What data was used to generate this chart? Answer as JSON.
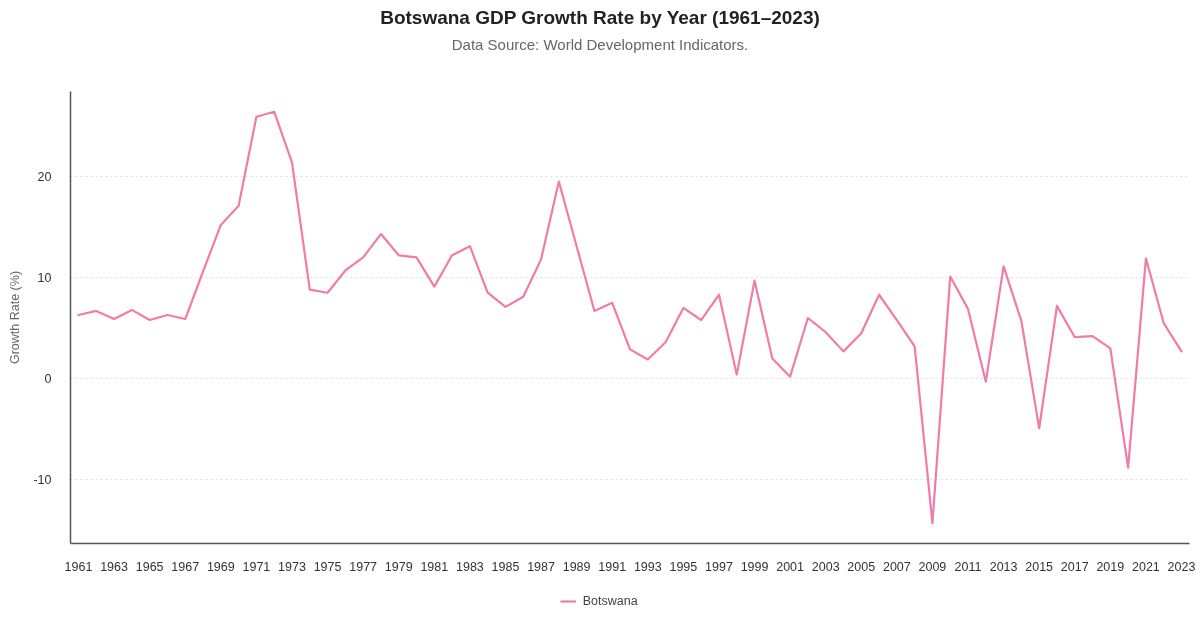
{
  "chart_data": {
    "type": "line",
    "title": "Botswana GDP Growth Rate by Year (1961–2023)",
    "subtitle": "Data Source: World Development Indicators.",
    "ylabel": "Growth Rate (%)",
    "categories": [
      "1961",
      null,
      "1963",
      null,
      "1965",
      null,
      "1967",
      null,
      "1969",
      null,
      "1971",
      null,
      "1973",
      null,
      "1975",
      null,
      "1977",
      null,
      "1979",
      null,
      "1981",
      null,
      "1983",
      null,
      "1985",
      null,
      "1987",
      null,
      "1989",
      null,
      "1991",
      null,
      "1993",
      null,
      "1995",
      null,
      "1997",
      null,
      "1999",
      null,
      "2001",
      null,
      "2003",
      null,
      "2005",
      null,
      "2007",
      null,
      "2009",
      null,
      "2011",
      null,
      "2013",
      null,
      "2015",
      null,
      "2017",
      null,
      "2019",
      null,
      "2021",
      null,
      "2023"
    ],
    "series": [
      {
        "name": "Botswana",
        "color": "#f27ba7",
        "values": [
          6.3,
          6.7,
          5.9,
          6.8,
          5.8,
          6.3,
          5.9,
          10.6,
          15.2,
          17.1,
          25.9,
          26.4,
          21.4,
          8.8,
          8.5,
          10.7,
          12.0,
          14.3,
          12.2,
          12.0,
          9.1,
          12.2,
          13.1,
          8.5,
          7.1,
          8.1,
          11.8,
          19.5,
          13.1,
          6.7,
          7.5,
          2.9,
          1.9,
          3.6,
          7.0,
          5.8,
          8.3,
          0.4,
          9.7,
          2.0,
          0.2,
          6.0,
          4.6,
          2.7,
          4.5,
          8.3,
          5.8,
          3.2,
          -14.3,
          10.1,
          6.9,
          -0.3,
          11.1,
          5.7,
          -4.9,
          7.2,
          4.1,
          4.2,
          3.0,
          -8.8,
          11.9,
          5.5,
          2.7
        ]
      }
    ],
    "ylim": [
      -16.3,
      28.4
    ],
    "yticks": [
      -10,
      0,
      10,
      20
    ],
    "grid": "y",
    "legend": "bottom",
    "line_style": "solid"
  }
}
